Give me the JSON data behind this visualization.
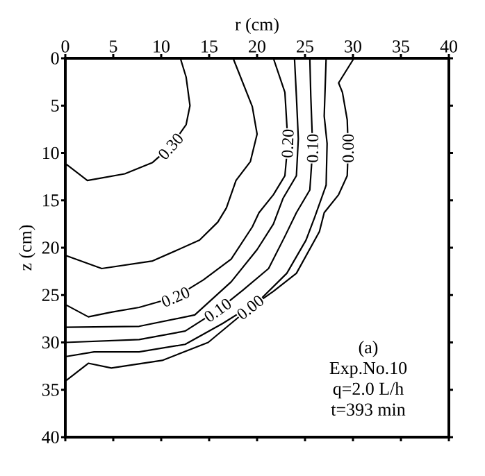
{
  "chart_data": {
    "type": "line",
    "xlabel": "r (cm)",
    "ylabel": "z (cm)",
    "xlim": [
      0,
      40
    ],
    "ylim": [
      40,
      0
    ],
    "xticks": [
      0,
      5,
      10,
      15,
      20,
      25,
      30,
      35,
      40
    ],
    "yticks": [
      0,
      5,
      10,
      15,
      20,
      25,
      30,
      35,
      40
    ],
    "marker": "none",
    "line_style": "solid",
    "series": [
      {
        "name": "0.30",
        "color": "#000000",
        "x": [
          0,
          2.3,
          6.2,
          9.1,
          11,
          12.6,
          13,
          12.6,
          12
        ],
        "values": [
          11.1,
          12.9,
          12.2,
          11,
          9.3,
          7,
          5,
          2,
          0
        ]
      },
      {
        "color": "#000000",
        "x": [
          0,
          3.8,
          9.1,
          14,
          15.9,
          16.8,
          17.8,
          19.3,
          20,
          19.5,
          17.5
        ],
        "values": [
          20.8,
          22.2,
          21.4,
          19.2,
          17.3,
          15.8,
          12.9,
          10.9,
          8,
          5.1,
          0
        ]
      },
      {
        "name": "0.20",
        "color": "#000000",
        "x": [
          0,
          2.4,
          4.8,
          7.7,
          11.5,
          14.4,
          17.3,
          19.5,
          20.2,
          21.7,
          22.9,
          23.2,
          23.1,
          22.9,
          21.7
        ],
        "values": [
          26,
          27.3,
          26.8,
          26.3,
          25.2,
          23.4,
          21.2,
          17.8,
          16.3,
          14.4,
          12.4,
          9,
          7,
          3.6,
          0
        ]
      },
      {
        "color": "#000000",
        "x": [
          0,
          7.7,
          13.5,
          17.3,
          20,
          21.7,
          22.7,
          24.1,
          24.3,
          24.1,
          23.9
        ],
        "values": [
          28.4,
          28.3,
          27.1,
          23.6,
          20.2,
          17.5,
          14.8,
          12.4,
          8.5,
          4,
          0
        ]
      },
      {
        "name": "0.10",
        "color": "#000000",
        "x": [
          0,
          7.7,
          12.5,
          15.9,
          18.5,
          21.2,
          22.9,
          24.1,
          25.5,
          25.8,
          25.6,
          25.5
        ],
        "values": [
          30,
          29.7,
          28.8,
          26.6,
          24.5,
          22.2,
          18.8,
          16.3,
          13.9,
          9.5,
          4,
          0
        ]
      },
      {
        "color": "#000000",
        "x": [
          0,
          3,
          7.7,
          12.5,
          16.4,
          20.2,
          23.1,
          25.1,
          26,
          27.2,
          27.3,
          27,
          27.2
        ],
        "values": [
          31.5,
          31,
          31,
          30.2,
          28,
          25.6,
          22.7,
          19.2,
          16.8,
          13.4,
          9,
          6.1,
          0
        ]
      },
      {
        "name": "0.00",
        "color": "#000000",
        "x": [
          0,
          2.4,
          4.8,
          10.1,
          14.9,
          19.3,
          21.7,
          24.1,
          26.5,
          27,
          28.5,
          29.4,
          29.5,
          29.4,
          28.9,
          28.5,
          30.1
        ],
        "values": [
          34.1,
          32.2,
          32.7,
          31.9,
          30,
          26.3,
          24.6,
          22.7,
          18.3,
          16.3,
          14.4,
          12.4,
          9.5,
          6.5,
          3.6,
          2.6,
          0
        ]
      }
    ],
    "annotations": [
      "(a)",
      "Exp.No.10",
      "q=2.0 L/h",
      "t=393 min"
    ]
  }
}
